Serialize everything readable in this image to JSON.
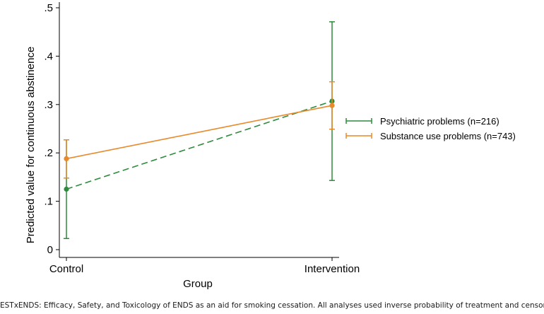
{
  "chart_data": {
    "type": "line",
    "xlabel": "Group",
    "ylabel": "Predicted value for continuous abstinence",
    "categories": [
      "Control",
      "Intervention"
    ],
    "ylim": [
      0,
      0.5
    ],
    "yticks": [
      0,
      0.1,
      0.2,
      0.3,
      0.4,
      0.5
    ],
    "ytick_labels": [
      "0",
      ".1",
      ".2",
      ".3",
      ".4",
      ".5"
    ],
    "grid": false,
    "legend_position": "right",
    "series": [
      {
        "name": "Psychiatric problems (n=216)",
        "color": "#2e8b3d",
        "line_style": "dashed",
        "values": [
          0.125,
          0.307
        ],
        "ci_low": [
          0.023,
          0.143
        ],
        "ci_high": [
          0.227,
          0.471
        ]
      },
      {
        "name": "Substance use problems (n=743)",
        "color": "#e8892a",
        "line_style": "solid",
        "values": [
          0.188,
          0.298
        ],
        "ci_low": [
          0.148,
          0.249
        ],
        "ci_high": [
          0.227,
          0.347
        ]
      }
    ]
  },
  "footnote": "ESTxENDS: Efficacy, Safety, and Toxicology of ENDS as an aid for smoking cessation. All analyses used inverse probability of treatment and censoring weighting."
}
